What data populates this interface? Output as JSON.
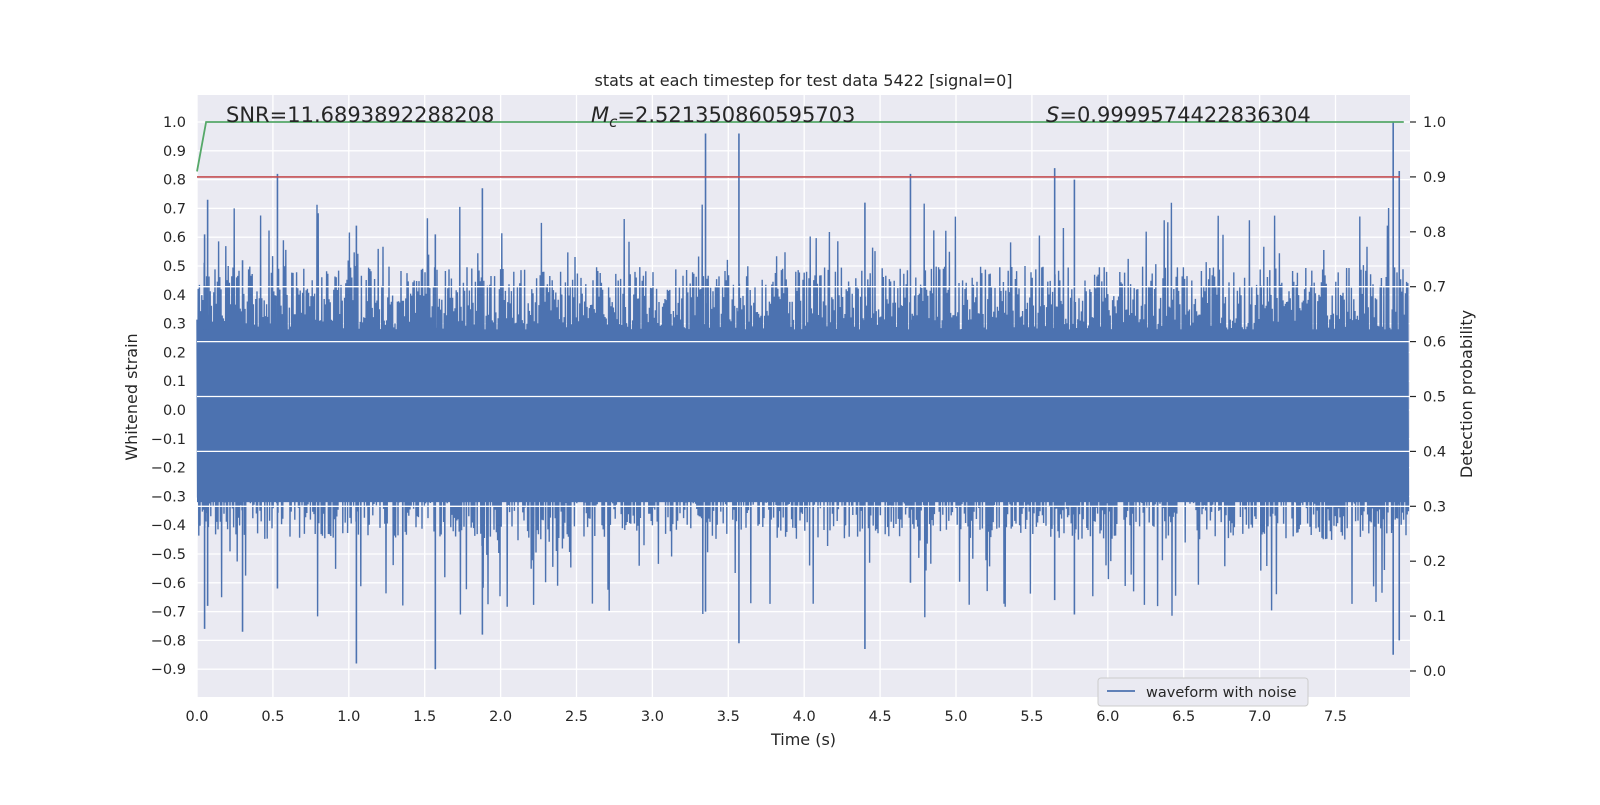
{
  "chart_data": {
    "type": "line",
    "title": "stats at each timestep for test data 5422 [signal=0]",
    "xlabel": "Time (s)",
    "ylabel_left": "Whitened strain",
    "ylabel_right": "Detection probability",
    "xlim": [
      0.0,
      8.0
    ],
    "ylim_left": [
      -1.0,
      1.1
    ],
    "ylim_right": [
      -0.05,
      1.0
    ],
    "x_ticks": [
      "0.0",
      "0.5",
      "1.0",
      "1.5",
      "2.0",
      "2.5",
      "3.0",
      "3.5",
      "4.0",
      "4.5",
      "5.0",
      "5.5",
      "6.0",
      "6.5",
      "7.0",
      "7.5"
    ],
    "y_ticks_left": [
      "1.0",
      "0.9",
      "0.8",
      "0.7",
      "0.6",
      "0.5",
      "0.4",
      "0.3",
      "0.2",
      "0.1",
      "0.0",
      "−0.1",
      "−0.2",
      "−0.3",
      "−0.4",
      "−0.5",
      "−0.6",
      "−0.7",
      "−0.8",
      "−0.9"
    ],
    "y_ticks_right": [
      "1.0",
      "0.9",
      "0.8",
      "0.7",
      "0.6",
      "0.5",
      "0.4",
      "0.3",
      "0.2",
      "0.1",
      "0.0"
    ],
    "grid": true,
    "legend": {
      "position": "lower-right",
      "entries": [
        "waveform with noise"
      ]
    },
    "annotations": {
      "snr": "SNR=11.6893892288208",
      "mc_symbol": "M",
      "mc_sub": "c",
      "mc_value": "=2.521350860595703",
      "s_symbol": "S",
      "s_value": "=0.9999574422836304"
    },
    "series": [
      {
        "name": "waveform with noise",
        "axis": "left",
        "style": "noise-band",
        "envelope_typical": [
          -0.45,
          0.5
        ],
        "dense_core": [
          -0.32,
          0.28
        ],
        "peaks": [
          {
            "x": 0.05,
            "top": 0.61,
            "bottom": -0.76
          },
          {
            "x": 0.07,
            "top": 0.73,
            "bottom": -0.68
          },
          {
            "x": 0.3,
            "top": 0.52,
            "bottom": -0.77
          },
          {
            "x": 0.53,
            "top": 0.82,
            "bottom": -0.62
          },
          {
            "x": 1.05,
            "top": 0.64,
            "bottom": -0.88
          },
          {
            "x": 1.57,
            "top": 0.61,
            "bottom": -0.9
          },
          {
            "x": 1.88,
            "top": 0.77,
            "bottom": -0.78
          },
          {
            "x": 3.35,
            "top": 0.96,
            "bottom": -0.7
          },
          {
            "x": 3.57,
            "top": 0.96,
            "bottom": -0.81
          },
          {
            "x": 4.4,
            "top": 0.72,
            "bottom": -0.83
          },
          {
            "x": 4.7,
            "top": 0.82,
            "bottom": -0.6
          },
          {
            "x": 5.65,
            "top": 0.84,
            "bottom": -0.66
          },
          {
            "x": 5.78,
            "top": 0.8,
            "bottom": -0.71
          },
          {
            "x": 7.88,
            "top": 1.0,
            "bottom": -0.85
          },
          {
            "x": 7.92,
            "top": 0.83,
            "bottom": -0.8
          }
        ]
      },
      {
        "name": "",
        "axis": "right",
        "style": "line",
        "x": [
          0.0,
          0.06,
          7.95
        ],
        "y": [
          0.91,
          1.0,
          1.0
        ]
      },
      {
        "name": "",
        "axis": "right",
        "style": "hline",
        "y": 0.9
      }
    ],
    "colors": {
      "background": "#eaeaf2",
      "grid": "#ffffff",
      "waveform": "#4c72b0",
      "probability": "#55a868",
      "threshold": "#c44e52"
    }
  }
}
